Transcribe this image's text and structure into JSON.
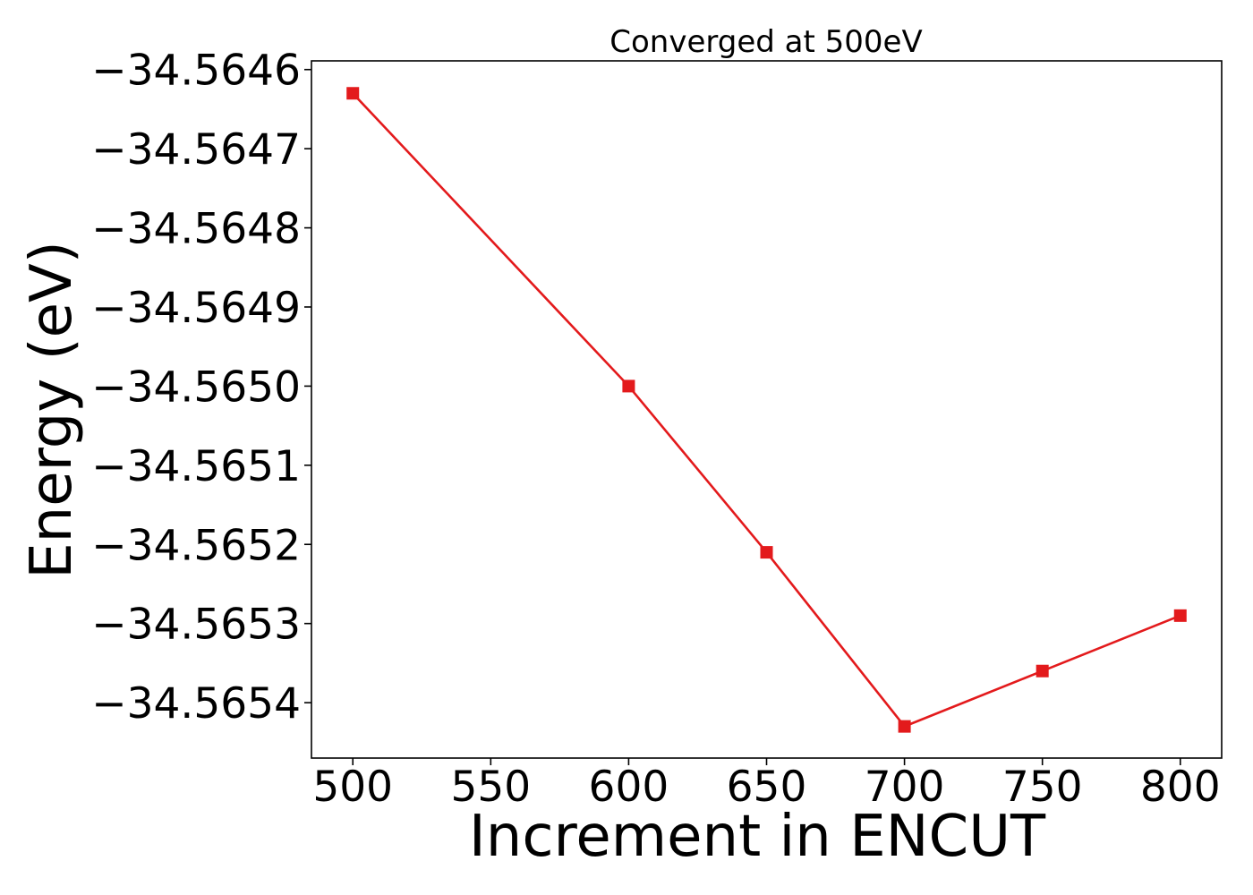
{
  "chart_data": {
    "type": "line",
    "title": "Converged at 500eV",
    "xlabel": "Increment in ENCUT",
    "ylabel": "Energy (eV)",
    "x": [
      500,
      600,
      650,
      700,
      750,
      800
    ],
    "series": [
      {
        "values": [
          -34.56463,
          -34.565,
          -34.56521,
          -34.56543,
          -34.56536,
          -34.56529
        ],
        "color": "#e31a1c",
        "marker": "square"
      }
    ],
    "xlim": [
      485,
      815
    ],
    "ylim": [
      -34.56547,
      -34.564589
    ],
    "xticks": [
      500,
      550,
      600,
      650,
      700,
      750,
      800
    ],
    "xtick_labels": [
      "500",
      "550",
      "600",
      "650",
      "700",
      "750",
      "800"
    ],
    "yticks": [
      -34.5646,
      -34.5647,
      -34.5648,
      -34.5649,
      -34.565,
      -34.5651,
      -34.5652,
      -34.5653,
      -34.5654
    ],
    "ytick_labels": [
      "−34.5646",
      "−34.5647",
      "−34.5648",
      "−34.5649",
      "−34.5650",
      "−34.5651",
      "−34.5652",
      "−34.5653",
      "−34.5654"
    ],
    "grid": false,
    "legend": false
  }
}
